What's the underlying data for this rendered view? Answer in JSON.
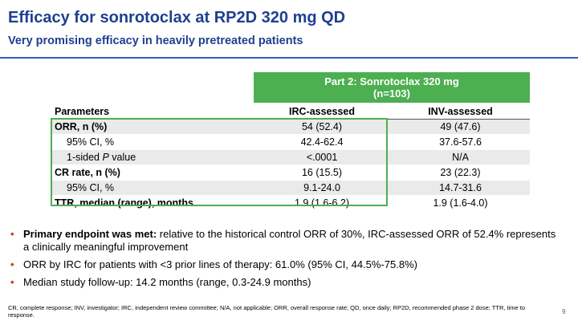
{
  "title": "Efficacy for sonrotoclax at RP2D 320 mg QD",
  "subtitle": "Very promising efficacy in heavily pretreated patients",
  "part_header": {
    "line1": "Part 2: Sonrotoclax 320 mg",
    "line2": "(n=103)"
  },
  "table": {
    "headers": [
      "Parameters",
      "IRC-assessed",
      "INV-assessed"
    ],
    "rows": [
      {
        "param": "ORR, n (%)",
        "irc": "54 (52.4)",
        "inv": "49 (47.6)"
      },
      {
        "param": "95% CI, %",
        "irc": "42.4-62.4",
        "inv": "37.6-57.6"
      },
      {
        "param_prefix": "1-sided ",
        "param_italic": "P",
        "param_suffix": " value",
        "irc": "<.0001",
        "inv": "N/A"
      },
      {
        "param": "CR rate, n (%)",
        "irc": "16 (15.5)",
        "inv": "23 (22.3)"
      },
      {
        "param": "95% CI, %",
        "irc": "9.1-24.0",
        "inv": "14.7-31.6"
      },
      {
        "param": "TTR, median (range), months",
        "irc": "1.9 (1.6-6.2)",
        "inv": "1.9 (1.6-4.0)"
      }
    ]
  },
  "bullets": [
    {
      "bold": "Primary endpoint was met:",
      "text": " relative to the historical control ORR of 30%, IRC-assessed ORR of 52.4% represents a clinically meaningful improvement"
    },
    {
      "bold": "",
      "text": "ORR by IRC for patients with <3 prior lines of therapy: 61.0% (95% CI, 44.5%-75.8%)"
    },
    {
      "bold": "",
      "text": "Median study follow-up: 14.2 months (range, 0.3-24.9 months)"
    }
  ],
  "footnote": "CR, complete response; INV, investigator; IRC, independent review committee; N/A, not applicable; ORR, overall response rate; QD, once daily; RP2D, recommended phase 2 dose; TTR, time to response.",
  "page_number": "9",
  "colors": {
    "title": "#1f3f8f",
    "accent_green": "#4caf50",
    "bullet_red": "#d9342b",
    "row_shade": "#eaeaea"
  }
}
